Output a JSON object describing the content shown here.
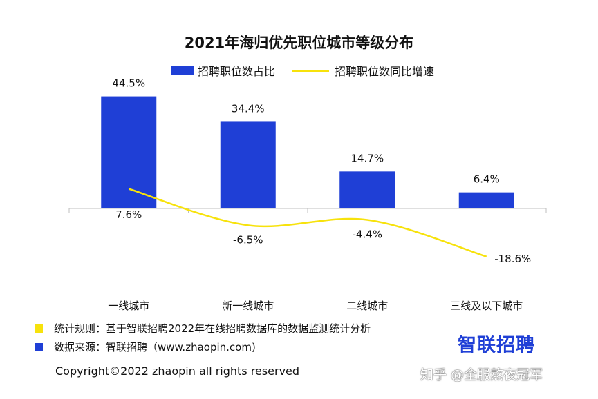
{
  "chart_data": {
    "type": "bar",
    "title": "2021年海归优先职位城市等级分布",
    "categories": [
      "一线城市",
      "新一线城市",
      "二线城市",
      "三线及以下城市"
    ],
    "series": [
      {
        "name": "招聘职位数占比",
        "type": "bar",
        "color": "#1F3FD6",
        "values": [
          44.5,
          34.4,
          14.7,
          6.4
        ],
        "labels": [
          "44.5%",
          "34.4%",
          "14.7%",
          "6.4%"
        ]
      },
      {
        "name": "招聘职位数同比增速",
        "type": "line",
        "color": "#F7E20C",
        "values": [
          7.6,
          -6.5,
          -4.4,
          -18.6
        ],
        "labels": [
          "7.6%",
          "-6.5%",
          "-4.4%",
          "-18.6%"
        ]
      }
    ],
    "legend_position": "top",
    "grid": false
  },
  "footer": {
    "rule_label": "统计规则：基于智联招聘2022年在线招聘数据库的数据监测统计分析",
    "rule_color": "#F7E20C",
    "source_label": "数据来源：智联招聘（www.zhaopin.com)",
    "source_color": "#1F3FD6",
    "brand": "智联招聘",
    "copyright": "Copyright©2022 zhaopin all rights reserved",
    "watermark": "知乎 @全服熬夜冠军"
  }
}
